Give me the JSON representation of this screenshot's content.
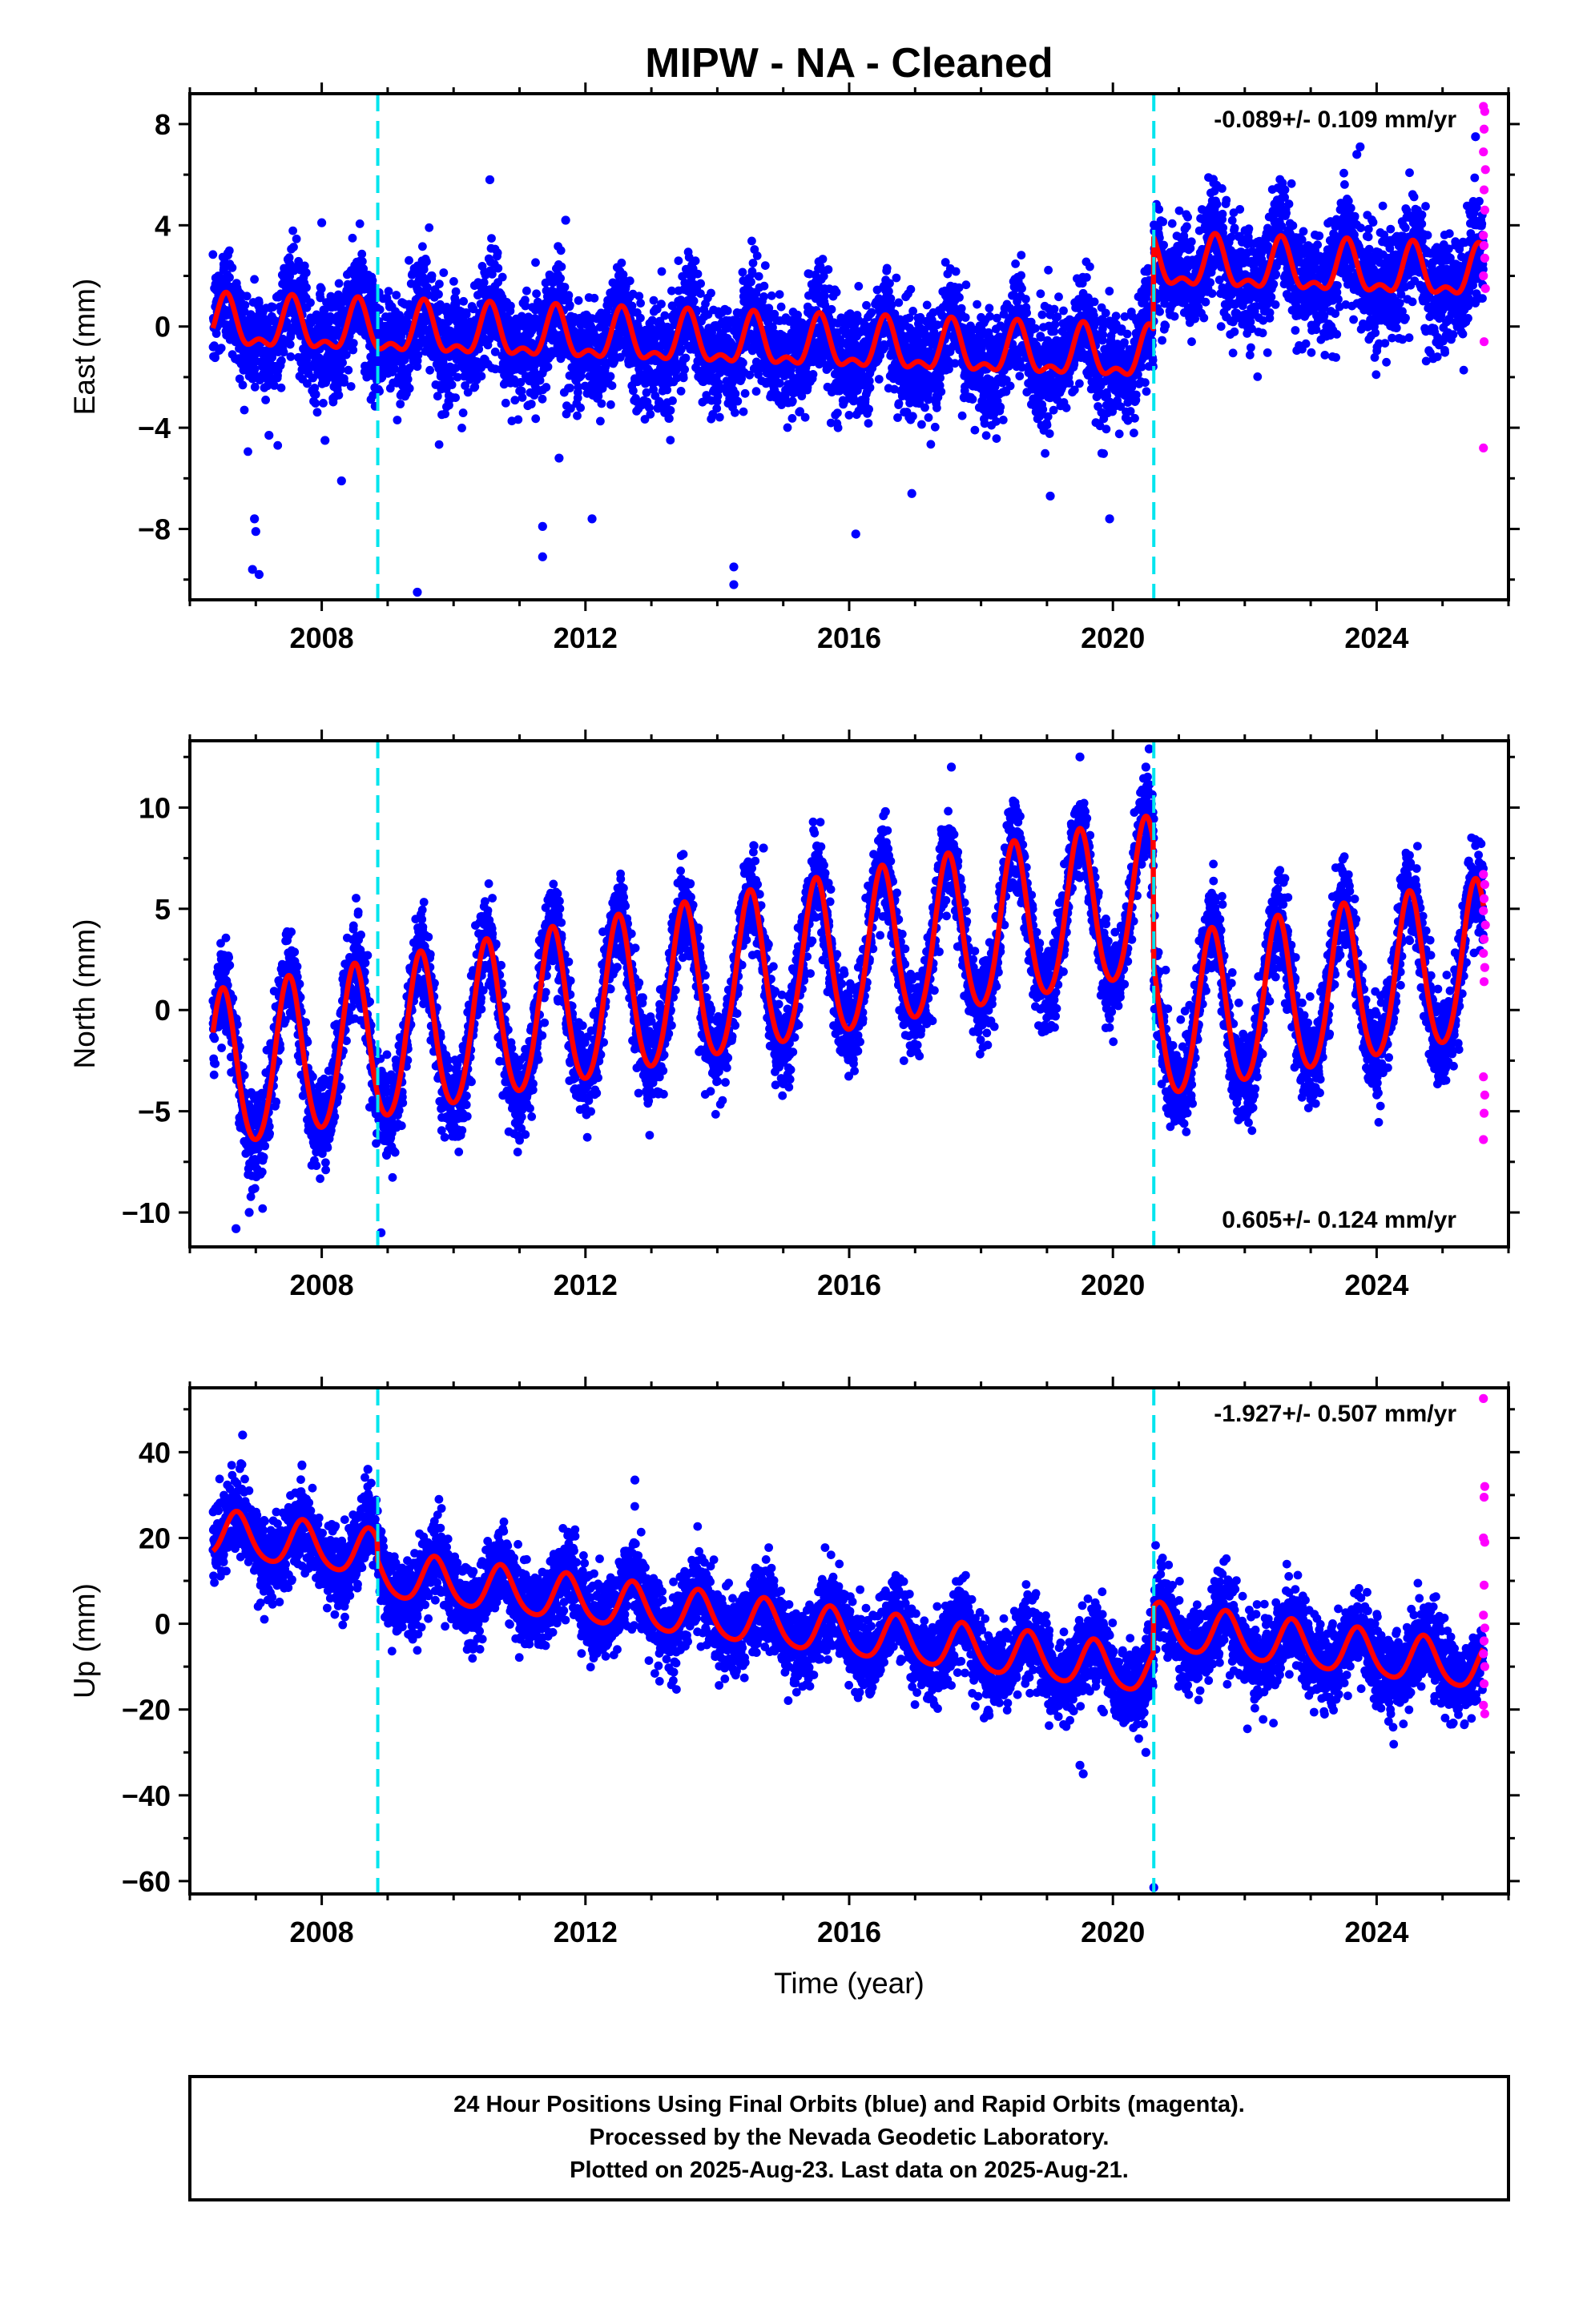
{
  "title": "MIPW  - NA - Cleaned",
  "colors": {
    "final_orbits": "#0000ff",
    "rapid_orbits": "#ff00ff",
    "model": "#ff0000",
    "equipment_change": "#00e5ee"
  },
  "caption": {
    "line1": "24 Hour Positions Using Final Orbits (blue) and Rapid Orbits (magenta).",
    "line2": "Processed by the Nevada Geodetic Laboratory.",
    "line3": "Plotted on 2025-Aug-23. Last data on 2025-Aug-21."
  },
  "chart_data": [
    {
      "type": "scatter",
      "component": "east",
      "ylabel": "East (mm)",
      "xlabel": "",
      "xlim": [
        2006.0,
        2026.0
      ],
      "ylim": [
        -10.8,
        9.2
      ],
      "x_ticks": [
        2008,
        2012,
        2016,
        2020,
        2024
      ],
      "x_tick_labels": [
        "2008",
        "2012",
        "2016",
        "2020",
        "2024"
      ],
      "y_ticks": [
        -8,
        -4,
        0,
        4,
        8
      ],
      "y_tick_labels": [
        "−8",
        "−4",
        "0",
        "4",
        "8"
      ],
      "rate_label": "-0.089+/- 0.109 mm/yr",
      "rate_label_position": "top-right",
      "equipment_changes": [
        2008.85,
        2020.62
      ],
      "model": {
        "start": 2006.35,
        "end": 2025.62,
        "segments": [
          {
            "from": 2006.35,
            "to": 2020.62,
            "offset_at_2006": 0.05,
            "trend_mm_per_yr": -0.089
          },
          {
            "from": 2020.62,
            "to": 2025.62,
            "offset_at_2006": 3.71,
            "trend_mm_per_yr": -0.089
          }
        ],
        "annual_amplitude": 0.9,
        "annual_phase_peak": 0.55,
        "semiannual_amplitude": 0.45,
        "semiannual_phase_peak": 0.05
      },
      "scatter_sigma": 1.05,
      "outliers": [
        [
          2006.95,
          -9.6
        ],
        [
          2007.0,
          -8.1
        ],
        [
          2006.98,
          -7.6
        ],
        [
          2007.05,
          -9.8
        ],
        [
          2007.2,
          -4.3
        ],
        [
          2008.05,
          -4.5
        ],
        [
          2008.3,
          -6.1
        ],
        [
          2009.45,
          -10.5
        ],
        [
          2011.35,
          -9.1
        ],
        [
          2011.35,
          -7.9
        ],
        [
          2011.6,
          -5.2
        ],
        [
          2012.1,
          -7.6
        ],
        [
          2014.25,
          -9.5
        ],
        [
          2014.25,
          -10.2
        ],
        [
          2016.1,
          -8.2
        ],
        [
          2016.95,
          -6.6
        ],
        [
          2019.05,
          -6.7
        ],
        [
          2019.95,
          -7.6
        ],
        [
          2023.75,
          7.1
        ],
        [
          2025.5,
          7.5
        ],
        [
          2008.0,
          4.1
        ],
        [
          2010.55,
          5.8
        ],
        [
          2011.7,
          4.2
        ],
        [
          2023.7,
          6.8
        ]
      ],
      "rapid_points": [
        [
          2025.62,
          8.7
        ],
        [
          2025.64,
          8.5
        ],
        [
          2025.63,
          7.8
        ],
        [
          2025.62,
          6.9
        ],
        [
          2025.65,
          6.2
        ],
        [
          2025.63,
          5.4
        ],
        [
          2025.64,
          4.6
        ],
        [
          2025.62,
          3.6
        ],
        [
          2025.63,
          3.2
        ],
        [
          2025.64,
          2.7
        ],
        [
          2025.62,
          2.0
        ],
        [
          2025.65,
          1.5
        ],
        [
          2025.63,
          -0.6
        ],
        [
          2025.62,
          -4.8
        ]
      ]
    },
    {
      "type": "scatter",
      "component": "north",
      "ylabel": "North (mm)",
      "xlabel": "",
      "xlim": [
        2006.0,
        2026.0
      ],
      "ylim": [
        -11.7,
        13.3
      ],
      "x_ticks": [
        2008,
        2012,
        2016,
        2020,
        2024
      ],
      "x_tick_labels": [
        "2008",
        "2012",
        "2016",
        "2020",
        "2024"
      ],
      "y_ticks": [
        -10,
        -5,
        0,
        5,
        10
      ],
      "y_tick_labels": [
        "−10",
        "−5",
        "0",
        "5",
        "10"
      ],
      "rate_label": "0.605+/- 0.124 mm/yr",
      "rate_label_position": "bottom-right",
      "equipment_changes": [
        2008.85,
        2020.62
      ],
      "model": {
        "start": 2006.35,
        "end": 2025.62,
        "segments": [
          {
            "from": 2006.35,
            "to": 2020.62,
            "offset_at_2006": -3.5,
            "trend_mm_per_yr": 0.605
          },
          {
            "from": 2020.62,
            "to": 2025.62,
            "offset_at_2006": -9.6,
            "trend_mm_per_yr": 0.605
          }
        ],
        "annual_amplitude": 3.9,
        "annual_phase_peak": 0.5,
        "semiannual_amplitude": 0.4,
        "semiannual_phase_peak": 0.0
      },
      "scatter_sigma": 1.1,
      "outliers": [
        [
          2006.7,
          -10.8
        ],
        [
          2006.9,
          -10.0
        ],
        [
          2008.9,
          -11.0
        ],
        [
          2017.55,
          12.0
        ],
        [
          2019.5,
          12.5
        ],
        [
          2020.55,
          12.9
        ],
        [
          2020.5,
          12.0
        ],
        [
          2014.7,
          8.0
        ],
        [
          2016.55,
          9.8
        ]
      ],
      "rapid_points": [
        [
          2025.62,
          6.7
        ],
        [
          2025.64,
          6.2
        ],
        [
          2025.63,
          5.5
        ],
        [
          2025.62,
          4.9
        ],
        [
          2025.65,
          4.2
        ],
        [
          2025.63,
          3.5
        ],
        [
          2025.62,
          2.8
        ],
        [
          2025.64,
          2.1
        ],
        [
          2025.63,
          1.4
        ],
        [
          2025.62,
          -3.3
        ],
        [
          2025.64,
          -4.2
        ],
        [
          2025.63,
          -5.1
        ],
        [
          2025.62,
          -6.4
        ]
      ]
    },
    {
      "type": "scatter",
      "component": "up",
      "ylabel": "Up (mm)",
      "xlabel": "Time (year)",
      "xlim": [
        2006.0,
        2026.0
      ],
      "ylim": [
        -63.0,
        55.0
      ],
      "x_ticks": [
        2008,
        2012,
        2016,
        2020,
        2024
      ],
      "x_tick_labels": [
        "2008",
        "2012",
        "2016",
        "2020",
        "2024"
      ],
      "y_ticks": [
        -60,
        -40,
        -20,
        0,
        20,
        40
      ],
      "y_tick_labels": [
        "−60",
        "−40",
        "−20",
        "0",
        "20",
        "40"
      ],
      "rate_label": "-1.927+/- 0.507 mm/yr",
      "rate_label_position": "top-right",
      "equipment_changes": [
        2008.85,
        2020.62
      ],
      "model": {
        "start": 2006.35,
        "end": 2025.62,
        "segments": [
          {
            "from": 2006.35,
            "to": 2008.85,
            "offset_at_2006": 21.5,
            "trend_mm_per_yr": -1.927
          },
          {
            "from": 2008.85,
            "to": 2020.62,
            "offset_at_2006": 16.8,
            "trend_mm_per_yr": -1.927
          },
          {
            "from": 2020.62,
            "to": 2025.62,
            "offset_at_2006": 27.3,
            "trend_mm_per_yr": -1.927
          }
        ],
        "annual_amplitude": 5.3,
        "annual_phase_peak": 0.72,
        "semiannual_amplitude": 0.8,
        "semiannual_phase_peak": 0.2
      },
      "scatter_sigma": 4.6,
      "outliers": [
        [
          2006.8,
          44.0
        ],
        [
          2007.7,
          37.0
        ],
        [
          2008.7,
          36.0
        ],
        [
          2012.75,
          33.5
        ],
        [
          2019.5,
          -33.0
        ],
        [
          2019.55,
          -35.0
        ],
        [
          2020.5,
          -30.0
        ],
        [
          2020.62,
          -61.5
        ]
      ],
      "rapid_points": [
        [
          2025.62,
          52.5
        ],
        [
          2025.64,
          32.0
        ],
        [
          2025.63,
          29.5
        ],
        [
          2025.62,
          20.0
        ],
        [
          2025.64,
          19.0
        ],
        [
          2025.63,
          9.0
        ],
        [
          2025.62,
          2.0
        ],
        [
          2025.64,
          -1.0
        ],
        [
          2025.63,
          -4.0
        ],
        [
          2025.62,
          -7.0
        ],
        [
          2025.64,
          -10.0
        ],
        [
          2025.63,
          -14.0
        ],
        [
          2025.62,
          -19.0
        ],
        [
          2025.64,
          -21.0
        ]
      ]
    }
  ]
}
